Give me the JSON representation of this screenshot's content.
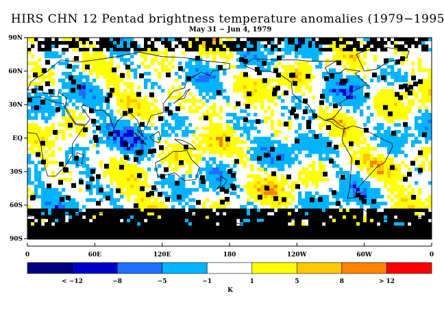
{
  "title": "HIRS CHN 12 Pentad brightness temperature anomalies (1979−1995)",
  "subtitle": "May 31 − Jun 4, 1979",
  "lat_labels": [
    "90N",
    "60N",
    "30N",
    "EQ",
    "30S",
    "60S",
    "90S"
  ],
  "lon_labels": [
    "0",
    "60E",
    "120E",
    "180",
    "120W",
    "60W",
    "0"
  ],
  "colorbar": {
    "colors": [
      "#000080",
      "#0000c8",
      "#1e6eff",
      "#00b4ff",
      "#ffffff",
      "#ffff00",
      "#ffc800",
      "#ff8200",
      "#ff0000"
    ],
    "labels": [
      "< −12",
      "−8",
      "−5",
      "−1",
      "1",
      "5",
      "8",
      "> 12"
    ],
    "units": "K"
  },
  "missing_color": "#000000",
  "continent_outline": "#000000"
}
